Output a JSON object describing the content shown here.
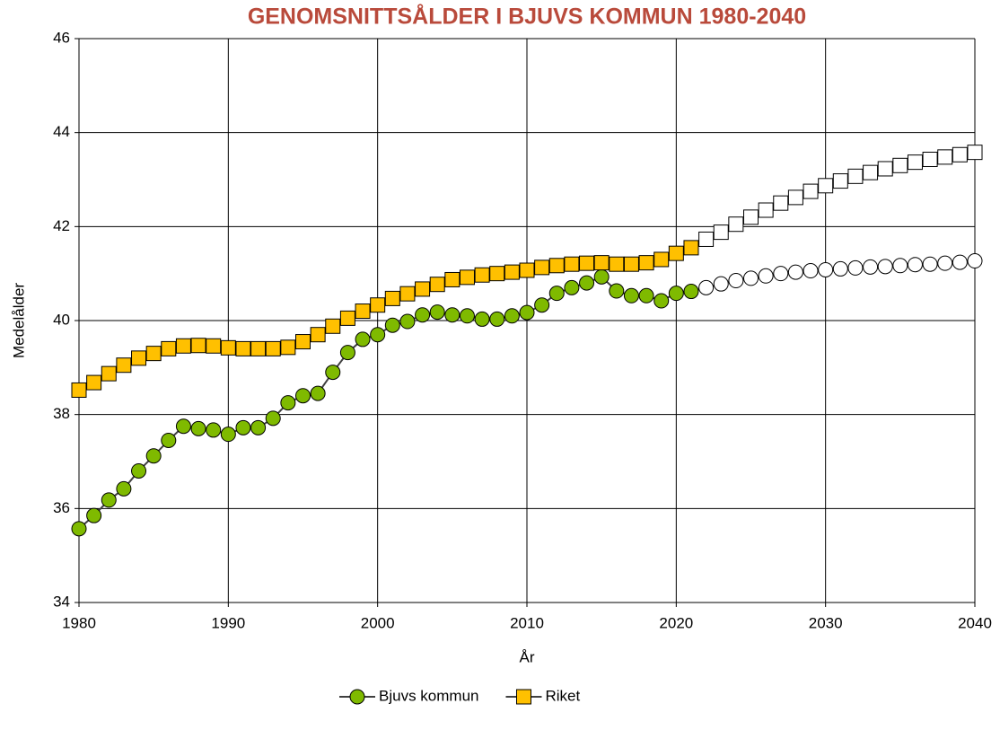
{
  "chart_data": {
    "type": "line",
    "title": "GENOMSNITTSÅLDER I BJUVS KOMMUN 1980-2040",
    "x_label": "År",
    "y_label": "Medelålder",
    "x": [
      1980,
      1981,
      1982,
      1983,
      1984,
      1985,
      1986,
      1987,
      1988,
      1989,
      1990,
      1991,
      1992,
      1993,
      1994,
      1995,
      1996,
      1997,
      1998,
      1999,
      2000,
      2001,
      2002,
      2003,
      2004,
      2005,
      2006,
      2007,
      2008,
      2009,
      2010,
      2011,
      2012,
      2013,
      2014,
      2015,
      2016,
      2017,
      2018,
      2019,
      2020,
      2021,
      2022,
      2023,
      2024,
      2025,
      2026,
      2027,
      2028,
      2029,
      2030,
      2031,
      2032,
      2033,
      2034,
      2035,
      2036,
      2037,
      2038,
      2039,
      2040
    ],
    "series": [
      {
        "name": "Bjuvs kommun",
        "color": "#404040",
        "marker": "circle",
        "marker_fill": "#7fba00",
        "projection_fill": "#ffffff",
        "values": [
          35.57,
          35.85,
          36.18,
          36.42,
          36.8,
          37.12,
          37.45,
          37.75,
          37.7,
          37.67,
          37.58,
          37.72,
          37.72,
          37.92,
          38.25,
          38.4,
          38.45,
          38.9,
          39.32,
          39.6,
          39.7,
          39.9,
          39.98,
          40.12,
          40.18,
          40.12,
          40.1,
          40.03,
          40.03,
          40.1,
          40.17,
          40.33,
          40.58,
          40.7,
          40.8,
          40.93,
          40.63,
          40.53,
          40.53,
          40.42,
          40.58,
          40.62,
          40.7,
          40.78,
          40.85,
          40.9,
          40.95,
          41.0,
          41.03,
          41.06,
          41.08,
          41.1,
          41.12,
          41.14,
          41.15,
          41.17,
          41.19,
          41.2,
          41.22,
          41.24,
          41.27
        ]
      },
      {
        "name": "Riket",
        "color": "#404040",
        "marker": "square",
        "marker_fill": "#ffc000",
        "projection_fill": "#ffffff",
        "values": [
          38.52,
          38.68,
          38.87,
          39.05,
          39.2,
          39.3,
          39.4,
          39.46,
          39.47,
          39.46,
          39.42,
          39.4,
          39.4,
          39.4,
          39.43,
          39.55,
          39.7,
          39.88,
          40.05,
          40.2,
          40.33,
          40.47,
          40.57,
          40.67,
          40.77,
          40.87,
          40.92,
          40.97,
          41.0,
          41.03,
          41.07,
          41.13,
          41.17,
          41.2,
          41.22,
          41.23,
          41.2,
          41.2,
          41.23,
          41.3,
          41.43,
          41.55,
          41.73,
          41.88,
          42.05,
          42.2,
          42.35,
          42.5,
          42.62,
          42.75,
          42.87,
          42.97,
          43.07,
          43.15,
          43.23,
          43.3,
          43.37,
          43.43,
          43.48,
          43.53,
          43.58
        ]
      }
    ],
    "projection_from": 2022,
    "xlim": [
      1980,
      2040
    ],
    "xticks": [
      1980,
      1990,
      2000,
      2010,
      2020,
      2030,
      2040
    ],
    "ylim": [
      34,
      46
    ],
    "yticks": [
      34,
      36,
      38,
      40,
      42,
      44,
      46
    ],
    "grid": true,
    "legend": "bottom",
    "title_color": "#b94a3b"
  }
}
